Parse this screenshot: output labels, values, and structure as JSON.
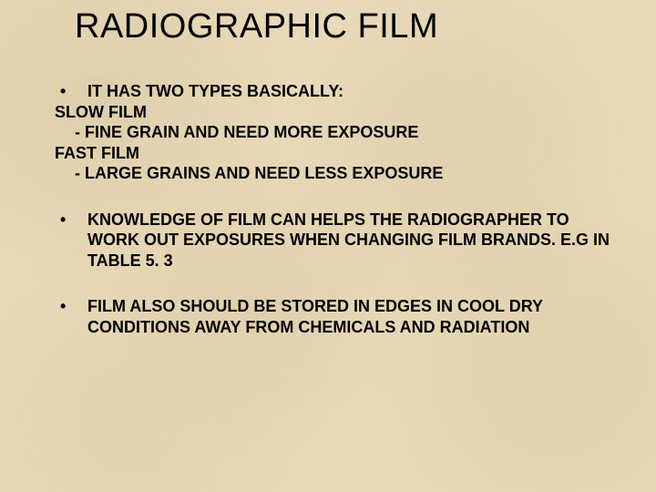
{
  "title": "RADIOGRAPHIC FILM",
  "colors": {
    "background": "#e8d9b8",
    "text": "#000000"
  },
  "typography": {
    "title_fontsize": 38,
    "title_weight": 400,
    "body_fontsize": 18,
    "body_weight": 700,
    "font_family": "Arial"
  },
  "bullets": {
    "b1": "IT HAS TWO TYPES BASICALLY:",
    "l1": "SLOW FILM",
    "l2": "- FINE GRAIN AND NEED MORE EXPOSURE",
    "l3": "FAST FILM",
    "l4": "- LARGE GRAINS AND NEED LESS EXPOSURE",
    "b2": "KNOWLEDGE OF FILM CAN HELPS THE RADIOGRAPHER TO WORK OUT EXPOSURES WHEN CHANGING FILM BRANDS. E.G IN TABLE 5. 3",
    "b3": "FILM ALSO SHOULD BE STORED IN EDGES IN COOL DRY CONDITIONS AWAY FROM CHEMICALS AND RADIATION"
  },
  "bullet_char": "•"
}
